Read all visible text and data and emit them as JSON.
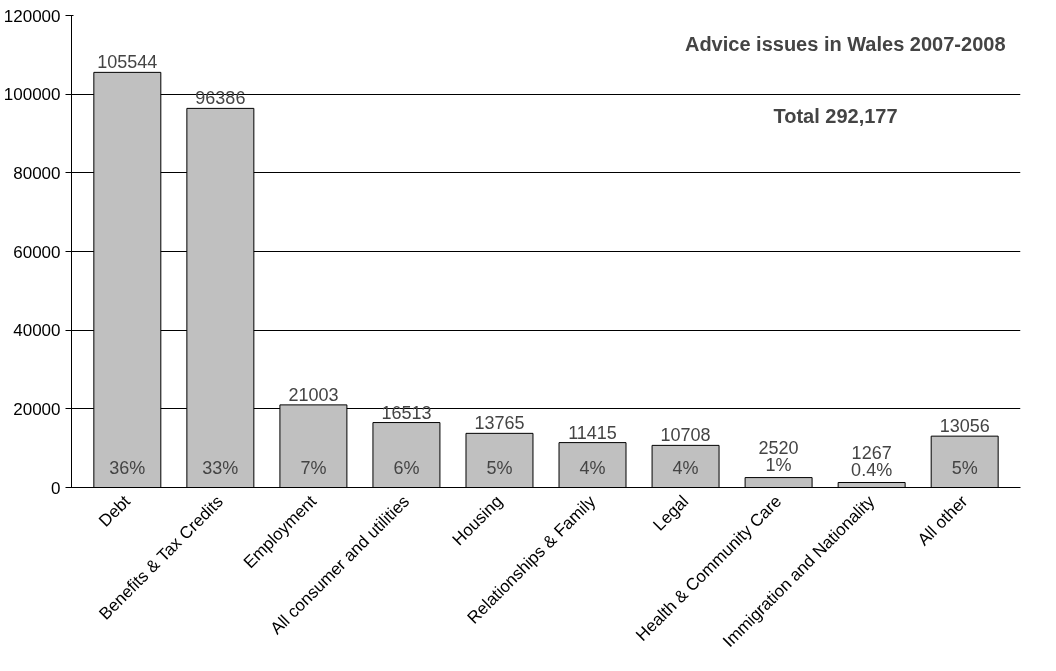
{
  "chart_data": {
    "type": "bar",
    "title": "Advice issues in Wales 2007-2008",
    "subtitle": "Total 292,177",
    "categories": [
      "Debt",
      "Benefits & Tax Credits",
      "Employment",
      "All consumer and utilities",
      "Housing",
      "Relationships & Family",
      "Legal",
      "Health & Community Care",
      "Immigration and Nationality",
      "All other"
    ],
    "values": [
      105544,
      96386,
      21003,
      16513,
      13765,
      11415,
      10708,
      2520,
      1267,
      13056
    ],
    "color": "#c0c0c0",
    "data_labels": true,
    "annotations": [
      "36%",
      "33%",
      "7%",
      "6%",
      "5%",
      "4%",
      "4%",
      "1%",
      "0.4%",
      "5%"
    ],
    "ylim": [
      0,
      120000
    ],
    "yticks": [
      0,
      20000,
      40000,
      60000,
      80000,
      100000,
      120000
    ],
    "grid": "y"
  }
}
